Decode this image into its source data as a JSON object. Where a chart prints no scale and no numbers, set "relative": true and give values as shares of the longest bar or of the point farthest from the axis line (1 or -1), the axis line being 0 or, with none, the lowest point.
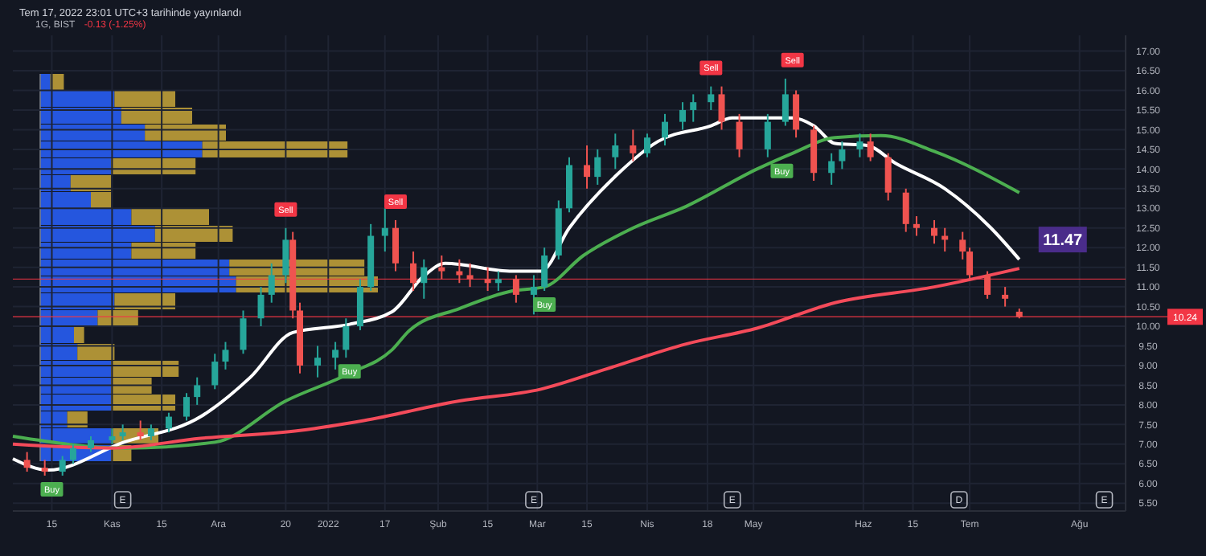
{
  "chart_data": [
    {
      "type": "candlestick",
      "title": "Tem 17, 2022 23:01 UTC+3 tarihinde yayınlandı",
      "subtitle": "1G, BIST",
      "grid": true,
      "xlim": [
        "2021-10-04",
        "2022-08-14"
      ],
      "xticks": [
        {
          "value": "2021-10-15",
          "label": "15"
        },
        {
          "value": "2021-11-01",
          "label": "Kas"
        },
        {
          "value": "2021-11-15",
          "label": "15"
        },
        {
          "value": "2021-12-01",
          "label": "Ara"
        },
        {
          "value": "2021-12-20",
          "label": "20"
        },
        {
          "value": "2022-01-01",
          "label": "2022"
        },
        {
          "value": "2022-01-17",
          "label": "17"
        },
        {
          "value": "2022-02-01",
          "label": "Şub"
        },
        {
          "value": "2022-02-15",
          "label": "15"
        },
        {
          "value": "2022-03-01",
          "label": "Mar"
        },
        {
          "value": "2022-03-15",
          "label": "15"
        },
        {
          "value": "2022-04-01",
          "label": "Nis"
        },
        {
          "value": "2022-04-18",
          "label": "18"
        },
        {
          "value": "2022-05-01",
          "label": "May"
        },
        {
          "value": "2022-06-01",
          "label": "Haz"
        },
        {
          "value": "2022-06-15",
          "label": "15"
        },
        {
          "value": "2022-07-01",
          "label": "Tem"
        },
        {
          "value": "2022-08-01",
          "label": "Ağu"
        }
      ],
      "ylim": [
        5.3,
        17.4
      ],
      "yticks": [
        {
          "value": 5.5,
          "label": "5.50"
        },
        {
          "value": 6,
          "label": "6.00"
        },
        {
          "value": 6.5,
          "label": "6.50"
        },
        {
          "value": 7,
          "label": "7.00"
        },
        {
          "value": 7.5,
          "label": "7.50"
        },
        {
          "value": 8,
          "label": "8.00"
        },
        {
          "value": 8.5,
          "label": "8.50"
        },
        {
          "value": 9,
          "label": "9.00"
        },
        {
          "value": 9.5,
          "label": "9.50"
        },
        {
          "value": 10,
          "label": "10.00"
        },
        {
          "value": 10.5,
          "label": "10.50"
        },
        {
          "value": 11,
          "label": "11.00"
        },
        {
          "value": 11.5,
          "label": "11.50"
        },
        {
          "value": 12,
          "label": "12.00"
        },
        {
          "value": 12.5,
          "label": "12.50"
        },
        {
          "value": 13,
          "label": "13.00"
        },
        {
          "value": 13.5,
          "label": "13.50"
        },
        {
          "value": 14,
          "label": "14.00"
        },
        {
          "value": 14.5,
          "label": "14.50"
        },
        {
          "value": 15,
          "label": "15.00"
        },
        {
          "value": 15.5,
          "label": "15.50"
        },
        {
          "value": 16,
          "label": "16.00"
        },
        {
          "value": 16.5,
          "label": "16.50"
        },
        {
          "value": 17,
          "label": "17.00"
        }
      ],
      "x": [
        "2021-10-08",
        "2021-10-13",
        "2021-10-18",
        "2021-10-21",
        "2021-10-26",
        "2021-11-01",
        "2021-11-04",
        "2021-11-09",
        "2021-11-12",
        "2021-11-17",
        "2021-11-22",
        "2021-11-25",
        "2021-11-30",
        "2021-12-03",
        "2021-12-08",
        "2021-12-13",
        "2021-12-16",
        "2021-12-20",
        "2021-12-22",
        "2021-12-24",
        "2021-12-29",
        "2022-01-03",
        "2022-01-06",
        "2022-01-10",
        "2022-01-13",
        "2022-01-17",
        "2022-01-20",
        "2022-01-25",
        "2022-01-28",
        "2022-02-02",
        "2022-02-07",
        "2022-02-10",
        "2022-02-15",
        "2022-02-18",
        "2022-02-23",
        "2022-02-28",
        "2022-03-03",
        "2022-03-07",
        "2022-03-10",
        "2022-03-15",
        "2022-03-18",
        "2022-03-23",
        "2022-03-28",
        "2022-04-01",
        "2022-04-06",
        "2022-04-11",
        "2022-04-14",
        "2022-04-19",
        "2022-04-22",
        "2022-04-27",
        "2022-05-05",
        "2022-05-10",
        "2022-05-13",
        "2022-05-18",
        "2022-05-23",
        "2022-05-26",
        "2022-05-31",
        "2022-06-03",
        "2022-06-08",
        "2022-06-13",
        "2022-06-16",
        "2022-06-21",
        "2022-06-24",
        "2022-06-29",
        "2022-07-01",
        "2022-07-06",
        "2022-07-11",
        "2022-07-15"
      ],
      "ohlc": [
        [
          6.6,
          6.8,
          6.3,
          6.4
        ],
        [
          6.4,
          6.6,
          6.2,
          6.3
        ],
        [
          6.3,
          6.7,
          6.2,
          6.6
        ],
        [
          6.6,
          7.0,
          6.5,
          6.9
        ],
        [
          6.9,
          7.2,
          6.8,
          7.1
        ],
        [
          7.1,
          7.4,
          7.0,
          7.2
        ],
        [
          7.2,
          7.5,
          7.1,
          7.3
        ],
        [
          7.3,
          7.6,
          7.1,
          7.2
        ],
        [
          7.2,
          7.5,
          7.1,
          7.4
        ],
        [
          7.4,
          7.8,
          7.3,
          7.7
        ],
        [
          7.7,
          8.3,
          7.6,
          8.2
        ],
        [
          8.2,
          8.7,
          8.0,
          8.5
        ],
        [
          8.5,
          9.3,
          8.4,
          9.1
        ],
        [
          9.1,
          9.6,
          8.9,
          9.4
        ],
        [
          9.4,
          10.4,
          9.3,
          10.2
        ],
        [
          10.2,
          11.0,
          10.0,
          10.8
        ],
        [
          10.8,
          11.6,
          10.6,
          11.3
        ],
        [
          11.3,
          12.5,
          11.1,
          12.2
        ],
        [
          12.2,
          12.4,
          10.2,
          10.4
        ],
        [
          10.4,
          10.6,
          8.8,
          9.0
        ],
        [
          9.0,
          9.5,
          8.7,
          9.2
        ],
        [
          9.2,
          9.6,
          8.9,
          9.4
        ],
        [
          9.4,
          10.2,
          9.2,
          10.0
        ],
        [
          10.0,
          11.2,
          9.9,
          11.0
        ],
        [
          11.0,
          12.6,
          10.9,
          12.3
        ],
        [
          12.3,
          13.0,
          11.9,
          12.5
        ],
        [
          12.5,
          12.7,
          11.4,
          11.6
        ],
        [
          11.6,
          11.9,
          10.9,
          11.1
        ],
        [
          11.1,
          11.7,
          10.7,
          11.5
        ],
        [
          11.5,
          11.8,
          11.2,
          11.4
        ],
        [
          11.4,
          11.7,
          11.1,
          11.3
        ],
        [
          11.3,
          11.6,
          11.0,
          11.2
        ],
        [
          11.2,
          11.5,
          10.9,
          11.1
        ],
        [
          11.1,
          11.4,
          10.9,
          11.2
        ],
        [
          11.2,
          11.3,
          10.6,
          10.8
        ],
        [
          10.8,
          11.3,
          10.3,
          11.0
        ],
        [
          11.0,
          12.0,
          10.9,
          11.8
        ],
        [
          11.8,
          13.2,
          11.7,
          13.0
        ],
        [
          13.0,
          14.3,
          12.9,
          14.1
        ],
        [
          14.1,
          14.6,
          13.5,
          13.8
        ],
        [
          13.8,
          14.5,
          13.6,
          14.3
        ],
        [
          14.3,
          14.9,
          14.0,
          14.6
        ],
        [
          14.6,
          15.0,
          14.2,
          14.4
        ],
        [
          14.4,
          14.9,
          14.3,
          14.8
        ],
        [
          14.8,
          15.4,
          14.6,
          15.2
        ],
        [
          15.2,
          15.7,
          15.0,
          15.5
        ],
        [
          15.5,
          15.9,
          15.2,
          15.7
        ],
        [
          15.7,
          16.1,
          15.5,
          15.9
        ],
        [
          15.9,
          16.1,
          15.0,
          15.2
        ],
        [
          15.2,
          15.4,
          14.3,
          14.5
        ],
        [
          14.5,
          15.4,
          14.3,
          15.2
        ],
        [
          15.2,
          16.3,
          15.1,
          15.9
        ],
        [
          15.9,
          16.0,
          14.8,
          15.0
        ],
        [
          15.0,
          15.1,
          13.7,
          13.9
        ],
        [
          13.9,
          14.4,
          13.6,
          14.2
        ],
        [
          14.2,
          14.7,
          14.0,
          14.5
        ],
        [
          14.5,
          14.9,
          14.3,
          14.7
        ],
        [
          14.7,
          14.9,
          14.2,
          14.3
        ],
        [
          14.3,
          14.4,
          13.2,
          13.4
        ],
        [
          13.4,
          13.5,
          12.4,
          12.6
        ],
        [
          12.6,
          12.8,
          12.3,
          12.5
        ],
        [
          12.5,
          12.7,
          12.1,
          12.3
        ],
        [
          12.3,
          12.5,
          11.9,
          12.2
        ],
        [
          12.2,
          12.4,
          11.7,
          11.9
        ],
        [
          11.9,
          12.0,
          11.2,
          11.3
        ],
        [
          11.3,
          11.4,
          10.7,
          10.8
        ],
        [
          10.8,
          11.0,
          10.5,
          10.7
        ],
        [
          10.37,
          10.45,
          10.2,
          10.24
        ]
      ],
      "series": [
        {
          "type": "line",
          "color": "#ffffff",
          "x": [
            "2021-10-04",
            "2021-10-14",
            "2021-11-04",
            "2021-11-26",
            "2021-12-10",
            "2021-12-22",
            "2022-01-07",
            "2022-01-19",
            "2022-01-28",
            "2022-02-03",
            "2022-02-22",
            "2022-03-02",
            "2022-03-10",
            "2022-03-24",
            "2022-04-04",
            "2022-04-19",
            "2022-04-25",
            "2022-05-12",
            "2022-05-18",
            "2022-05-24",
            "2022-06-02",
            "2022-06-10",
            "2022-06-24",
            "2022-07-07",
            "2022-07-15"
          ],
          "values": [
            6.63,
            6.34,
            7.04,
            7.7,
            8.7,
            9.84,
            10.05,
            10.37,
            11.28,
            11.6,
            11.4,
            11.4,
            12.5,
            13.9,
            14.7,
            15.1,
            15.3,
            15.3,
            15.1,
            14.65,
            14.6,
            14.15,
            13.5,
            12.5,
            11.7
          ]
        },
        {
          "type": "line",
          "color": "#4caf50",
          "x": [
            "2021-10-04",
            "2021-11-05",
            "2021-11-30",
            "2021-12-20",
            "2022-01-07",
            "2022-01-19",
            "2022-01-24",
            "2022-02-07",
            "2022-02-22",
            "2022-03-03",
            "2022-03-14",
            "2022-03-28",
            "2022-04-12",
            "2022-05-02",
            "2022-05-12",
            "2022-05-24",
            "2022-06-06",
            "2022-06-21",
            "2022-07-15"
          ],
          "values": [
            7.2,
            6.9,
            7.05,
            8.1,
            8.8,
            9.4,
            9.9,
            10.45,
            10.9,
            11.0,
            11.8,
            12.5,
            13.05,
            14.0,
            14.4,
            14.8,
            14.85,
            14.45,
            13.4
          ]
        },
        {
          "type": "line",
          "color": "#f44b5a",
          "x": [
            "2021-10-04",
            "2021-11-01",
            "2021-11-26",
            "2021-12-24",
            "2022-01-11",
            "2022-02-07",
            "2022-03-02",
            "2022-03-20",
            "2022-04-12",
            "2022-05-02",
            "2022-05-24",
            "2022-06-21",
            "2022-07-15"
          ],
          "values": [
            7.0,
            6.9,
            7.15,
            7.35,
            7.6,
            8.1,
            8.4,
            8.9,
            9.55,
            9.95,
            10.6,
            11.0,
            11.47
          ]
        }
      ],
      "ref_lines": [
        {
          "axis": "y",
          "value": 10.24,
          "label": "10.24",
          "color": "#f23645"
        },
        {
          "axis": "y",
          "value": 11.2,
          "label": null,
          "color": "#f23645"
        }
      ],
      "annotations": [
        "-0.13 (-1.25%)",
        {
          "text": "11.47",
          "x": "2022-07-15",
          "y": 11.47
        },
        {
          "text": "Sell",
          "x": "2021-12-20",
          "y": 12.5
        },
        {
          "text": "Sell",
          "x": "2022-01-20",
          "y": 12.7
        },
        {
          "text": "Sell",
          "x": "2022-04-19",
          "y": 16.1
        },
        {
          "text": "Sell",
          "x": "2022-05-12",
          "y": 16.3
        },
        {
          "text": "Buy",
          "x": "2021-10-15",
          "y": 6.2
        },
        {
          "text": "Buy",
          "x": "2022-01-07",
          "y": 9.2
        },
        {
          "text": "Buy",
          "x": "2022-03-03",
          "y": 10.9
        },
        {
          "text": "Buy",
          "x": "2022-05-09",
          "y": 14.3
        },
        {
          "text": "E",
          "x": "2021-11-04"
        },
        {
          "text": "E",
          "x": "2022-02-28"
        },
        {
          "text": "E",
          "x": "2022-04-25"
        },
        {
          "text": "D",
          "x": "2022-06-28"
        },
        {
          "text": "E",
          "x": "2022-08-08"
        }
      ]
    },
    {
      "type": "bar",
      "orientation": "horizontal",
      "stacked": true,
      "relative": true,
      "categories": [
        null,
        null,
        null,
        null,
        null,
        null,
        null,
        null,
        null,
        null,
        null,
        null,
        null,
        null,
        null,
        null,
        null,
        null,
        null,
        null,
        null,
        null,
        null
      ],
      "series": [
        {
          "color": "#2962ff",
          "values": [
            0.03,
            0.22,
            0.24,
            0.31,
            0.48,
            0.21,
            0.09,
            0.15,
            0.27,
            0.34,
            0.27,
            0.56,
            0.58,
            0.22,
            0.17,
            0.1,
            0.11,
            0.21,
            0.21,
            0.21,
            0.08,
            0.21,
            0.21
          ]
        },
        {
          "color": "#c9a73a",
          "values": [
            0.04,
            0.18,
            0.21,
            0.24,
            0.43,
            0.25,
            0.12,
            0.06,
            0.23,
            0.23,
            0.19,
            0.4,
            0.42,
            0.18,
            0.12,
            0.03,
            0.11,
            0.2,
            0.12,
            0.19,
            0.06,
            0.14,
            0.06
          ]
        }
      ]
    }
  ]
}
